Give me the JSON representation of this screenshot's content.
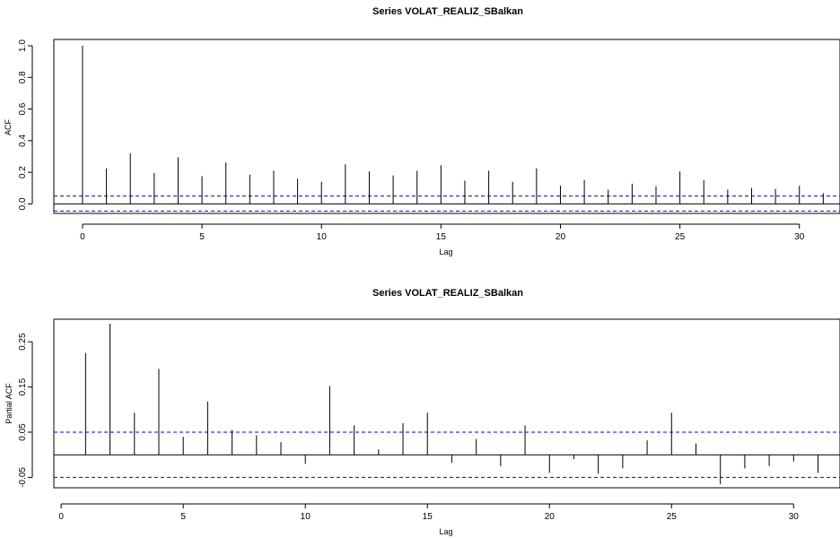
{
  "chart_data": [
    {
      "type": "bar",
      "title": "Series  VOLAT_REALIZ_SBalkan",
      "xlabel": "Lag",
      "ylabel": "ACF",
      "xlim": [
        -1.2,
        31.7
      ],
      "ylim": [
        -0.06,
        1.04
      ],
      "xticks": [
        "0",
        "5",
        "10",
        "15",
        "20",
        "25",
        "30"
      ],
      "yticks": [
        "0.0",
        "0.2",
        "0.4",
        "0.6",
        "0.8",
        "1.0"
      ],
      "conf_limits": [
        0.05,
        -0.045
      ],
      "lags": [
        0,
        1,
        2,
        3,
        4,
        5,
        6,
        7,
        8,
        9,
        10,
        11,
        12,
        13,
        14,
        15,
        16,
        17,
        18,
        19,
        20,
        21,
        22,
        23,
        24,
        25,
        26,
        27,
        28,
        29,
        30,
        31
      ],
      "values": [
        1.0,
        0.225,
        0.32,
        0.195,
        0.295,
        0.175,
        0.262,
        0.185,
        0.21,
        0.16,
        0.14,
        0.25,
        0.205,
        0.18,
        0.21,
        0.245,
        0.148,
        0.21,
        0.14,
        0.225,
        0.115,
        0.152,
        0.09,
        0.128,
        0.112,
        0.205,
        0.15,
        0.09,
        0.1,
        0.095,
        0.115,
        0.068
      ],
      "series_color": "#000000",
      "conf_color": "#0000ee"
    },
    {
      "type": "bar",
      "title": "Series  VOLAT_REALIZ_SBalkan",
      "xlabel": "Lag",
      "ylabel": "Partial ACF",
      "xlim": [
        -0.3,
        31.9
      ],
      "ylim": [
        -0.073,
        0.3
      ],
      "xticks": [
        "0",
        "5",
        "10",
        "15",
        "20",
        "25",
        "30"
      ],
      "yticks": [
        "-0.05",
        "0.05",
        "0.15",
        "0.25"
      ],
      "conf_limits": [
        0.05,
        -0.05
      ],
      "lags": [
        1,
        2,
        3,
        4,
        5,
        6,
        7,
        8,
        9,
        10,
        11,
        12,
        13,
        14,
        15,
        16,
        17,
        18,
        19,
        20,
        21,
        22,
        23,
        24,
        25,
        26,
        27,
        28,
        29,
        30,
        31
      ],
      "values": [
        0.225,
        0.29,
        0.093,
        0.19,
        0.04,
        0.118,
        0.055,
        0.043,
        0.028,
        -0.02,
        0.152,
        0.065,
        0.012,
        0.07,
        0.093,
        -0.018,
        0.035,
        -0.025,
        0.065,
        -0.04,
        -0.01,
        -0.042,
        -0.03,
        0.032,
        0.093,
        0.025,
        -0.065,
        -0.03,
        -0.025,
        -0.015,
        -0.04
      ],
      "series_color": "#000000",
      "conf_color": "#0000ee"
    }
  ]
}
